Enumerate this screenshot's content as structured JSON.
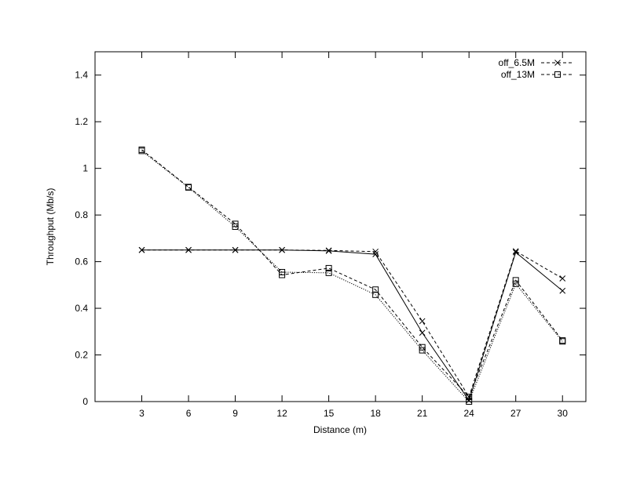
{
  "chart_data": {
    "type": "line",
    "xlabel": "Distance (m)",
    "ylabel": "Throughput (Mb/s)",
    "x": [
      3,
      6,
      9,
      12,
      15,
      18,
      21,
      24,
      27,
      30
    ],
    "x_ticks": [
      "3",
      "6",
      "9",
      "12",
      "15",
      "18",
      "21",
      "24",
      "27",
      "30"
    ],
    "xlim": [
      0,
      31.5
    ],
    "ylim": [
      0,
      1.5
    ],
    "y_ticks": [
      "0",
      "0.2",
      "0.4",
      "0.6",
      "0.8",
      "1",
      "1.2",
      "1.4"
    ],
    "grid": false,
    "legend_position": "top-right",
    "legend": [
      {
        "label": "off_6.5M",
        "marker": "cross",
        "dash": "dashed"
      },
      {
        "label": "off_13M",
        "marker": "square",
        "dash": "dashed"
      }
    ],
    "series": [
      {
        "name": "off_6.5M",
        "marker": "cross",
        "dash": "dashed",
        "values": [
          0.65,
          0.65,
          0.65,
          0.65,
          0.648,
          0.643,
          0.345,
          0.02,
          0.645,
          0.528
        ]
      },
      {
        "name": "off_13M",
        "marker": "square",
        "dash": "dashed",
        "values": [
          1.08,
          0.92,
          0.762,
          0.543,
          0.572,
          0.48,
          0.233,
          0.02,
          0.52,
          0.262
        ]
      },
      {
        "marker": "cross",
        "dash": "solid",
        "values": [
          0.65,
          0.65,
          0.65,
          0.65,
          0.646,
          0.632,
          0.295,
          0.005,
          0.64,
          0.475
        ]
      },
      {
        "marker": "square",
        "dash": "dotted",
        "values": [
          1.075,
          0.918,
          0.75,
          0.555,
          0.552,
          0.458,
          0.22,
          0.0,
          0.505,
          0.258
        ]
      }
    ]
  }
}
